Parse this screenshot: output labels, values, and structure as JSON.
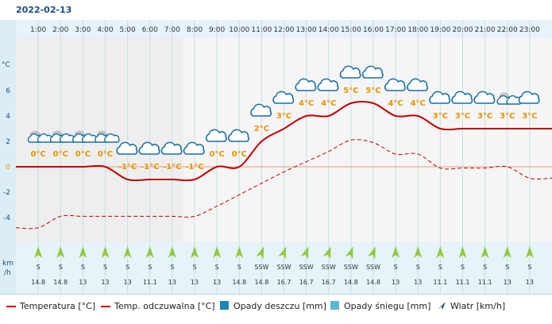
{
  "date": "2022-02-13",
  "axis": {
    "temp_unit": "°C",
    "wind_unit_line1": "km",
    "wind_unit_line2": "/h",
    "y_ticks": [
      "6",
      "4",
      "2",
      "0",
      "-2",
      "-4"
    ]
  },
  "hours": [
    "1:00",
    "2:00",
    "3:00",
    "4:00",
    "5:00",
    "6:00",
    "7:00",
    "8:00",
    "9:00",
    "10:00",
    "11:00",
    "12:00",
    "13:00",
    "14:00",
    "15:00",
    "16:00",
    "17:00",
    "18:00",
    "19:00",
    "20:00",
    "21:00",
    "22:00",
    "23:00"
  ],
  "chart_data": {
    "type": "line",
    "x": [
      "1:00",
      "2:00",
      "3:00",
      "4:00",
      "5:00",
      "6:00",
      "7:00",
      "8:00",
      "9:00",
      "10:00",
      "11:00",
      "12:00",
      "13:00",
      "14:00",
      "15:00",
      "16:00",
      "17:00",
      "18:00",
      "19:00",
      "20:00",
      "21:00",
      "22:00",
      "23:00"
    ],
    "series": [
      {
        "name": "Temperatura [°C]",
        "values": [
          0,
          0,
          0,
          0,
          -1,
          -1,
          -1,
          -1,
          0,
          0,
          2,
          3,
          4,
          4,
          5,
          5,
          4,
          4,
          3,
          3,
          3,
          3,
          3
        ]
      },
      {
        "name": "Temp. odczuwalna [°C]",
        "values": [
          -4.8,
          -3.9,
          -3.9,
          -3.9,
          -3.9,
          -3.9,
          -3.9,
          -3.9,
          -3.1,
          -2.2,
          -1.3,
          -0.4,
          0.4,
          1.2,
          2.1,
          1.9,
          1.0,
          1.0,
          -0.1,
          -0.1,
          -0.1,
          0.0,
          -0.9
        ]
      }
    ],
    "temp_labels": [
      "0°C",
      "0°C",
      "0°C",
      "0°C",
      "-1°C",
      "-1°C",
      "-1°C",
      "-1°C",
      "0°C",
      "0°C",
      "2°C",
      "3°C",
      "4°C",
      "4°C",
      "5°C",
      "5°C",
      "4°C",
      "4°C",
      "3°C",
      "3°C",
      "3°C",
      "3°C",
      "3°C"
    ],
    "ylim": [
      -6,
      8
    ],
    "ylabel": "°C"
  },
  "weather_icons": [
    "night-cloud-icon",
    "night-cloud-icon",
    "night-cloud-icon",
    "night-cloud-icon",
    "cloud-icon",
    "cloud-icon",
    "cloud-icon",
    "cloud-icon",
    "cloud-icon",
    "cloud-icon",
    "cloud-icon",
    "cloud-icon",
    "cloud-icon",
    "cloud-icon",
    "cloud-icon",
    "cloud-icon",
    "cloud-icon",
    "cloud-icon",
    "cloud-icon",
    "cloud-icon",
    "cloud-icon",
    "night-cloud-icon",
    "cloud-icon"
  ],
  "wind": {
    "directions": [
      "S",
      "S",
      "S",
      "S",
      "S",
      "S",
      "S",
      "S",
      "S",
      "S",
      "SSW",
      "SSW",
      "SSW",
      "SSW",
      "SSW",
      "SSW",
      "S",
      "S",
      "S",
      "S",
      "S",
      "S",
      "S"
    ],
    "speeds": [
      "14.8",
      "14.8",
      "13",
      "13",
      "13",
      "11.1",
      "13",
      "13",
      "13",
      "14.8",
      "14.8",
      "16.7",
      "16.7",
      "16.7",
      "14.8",
      "14.8",
      "13",
      "13",
      "11.1",
      "11.1",
      "11.1",
      "13",
      "13"
    ]
  },
  "legend": {
    "temperature": "Temperatura [°C]",
    "feels_like": "Temp. odczuwalna [°C]",
    "rain": "Opady deszczu [mm]",
    "snow": "Opady śniegu [mm]",
    "wind": "Wiatr [km/h]"
  },
  "colors": {
    "temperature": "#c00000",
    "temp_label": "#e69500",
    "rain": "#1a85b8",
    "snow": "#5bb6d6",
    "wind_arrow": "#93c93d",
    "zero_line": "#e8a07a",
    "axis_text": "#1f4e79"
  }
}
